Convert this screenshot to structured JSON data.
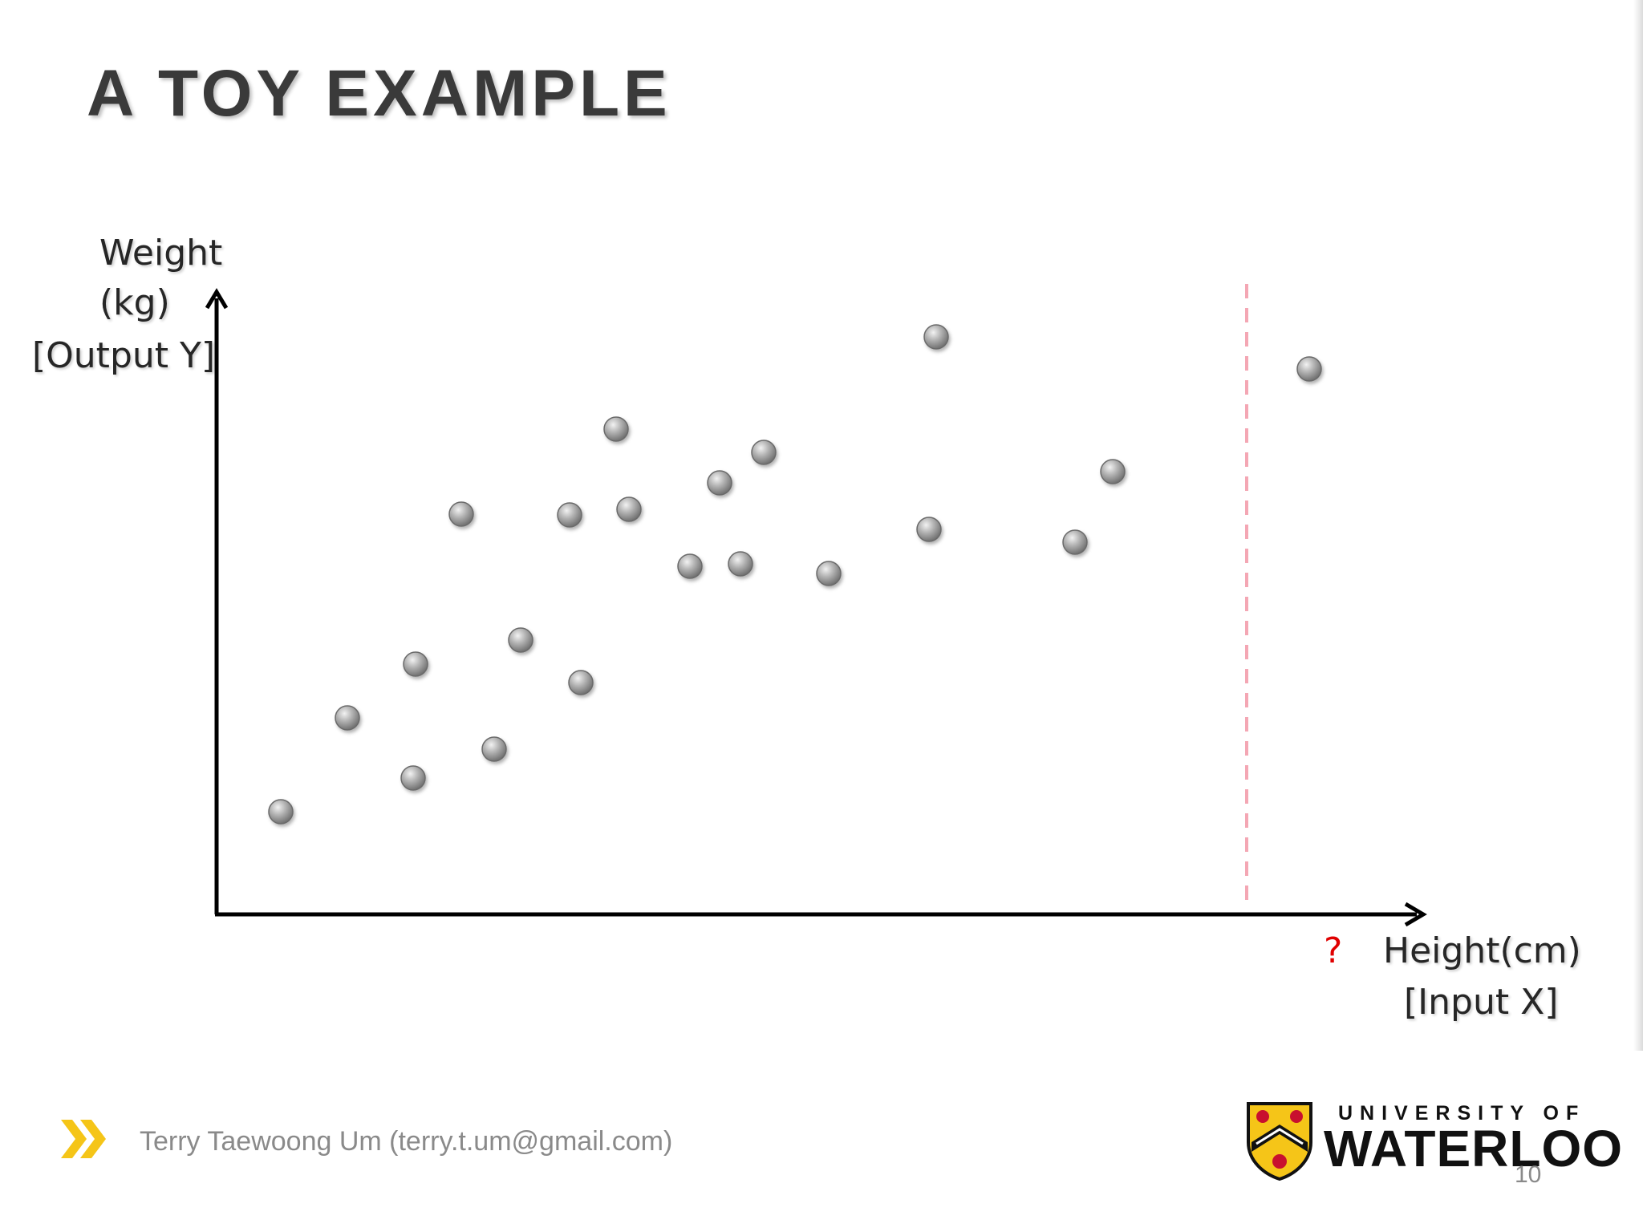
{
  "slide": {
    "title": "A TOY EXAMPLE",
    "page_number": "10"
  },
  "footer": {
    "author": "Terry Taewoong Um (terry.t.um@gmail.com)",
    "chevron_icon": "double-chevron-right-icon",
    "chevron_color": "#f5c518"
  },
  "logo": {
    "line1": "UNIVERSITY OF",
    "line2": "WATERLOO",
    "crest_icon": "university-crest-icon",
    "crest_colors": [
      "#f5c518",
      "#c8102e",
      "#111111"
    ]
  },
  "chart_data": {
    "type": "scatter",
    "xlabel_lines": [
      "Height(cm)",
      "[Input X]"
    ],
    "ylabel_lines": [
      "Weight",
      "(kg)",
      "[Output Y]"
    ],
    "query_marker_label": "?",
    "query_line_color": "#f4a7b4",
    "point_color": "#a8a8a8",
    "axis_color": "#000000",
    "grid": false,
    "points": [
      {
        "x": 8.0,
        "y": 12.8
      },
      {
        "x": 16.3,
        "y": 24.5
      },
      {
        "x": 24.5,
        "y": 17.0
      },
      {
        "x": 24.8,
        "y": 31.2
      },
      {
        "x": 30.5,
        "y": 49.9
      },
      {
        "x": 34.6,
        "y": 20.6
      },
      {
        "x": 37.9,
        "y": 34.2
      },
      {
        "x": 44.0,
        "y": 49.8
      },
      {
        "x": 45.4,
        "y": 28.9
      },
      {
        "x": 49.8,
        "y": 60.5
      },
      {
        "x": 51.4,
        "y": 50.5
      },
      {
        "x": 59.0,
        "y": 43.4
      },
      {
        "x": 62.7,
        "y": 53.8
      },
      {
        "x": 65.3,
        "y": 43.7
      },
      {
        "x": 68.2,
        "y": 57.6
      },
      {
        "x": 76.3,
        "y": 42.5
      },
      {
        "x": 88.8,
        "y": 48.0
      },
      {
        "x": 89.7,
        "y": 72.0
      },
      {
        "x": 107.0,
        "y": 46.4
      },
      {
        "x": 111.7,
        "y": 55.2
      },
      {
        "x": 136.2,
        "y": 68.0
      }
    ],
    "query_x": 128.4,
    "xlim": [
      0,
      150
    ],
    "ylim": [
      0,
      92
    ]
  }
}
